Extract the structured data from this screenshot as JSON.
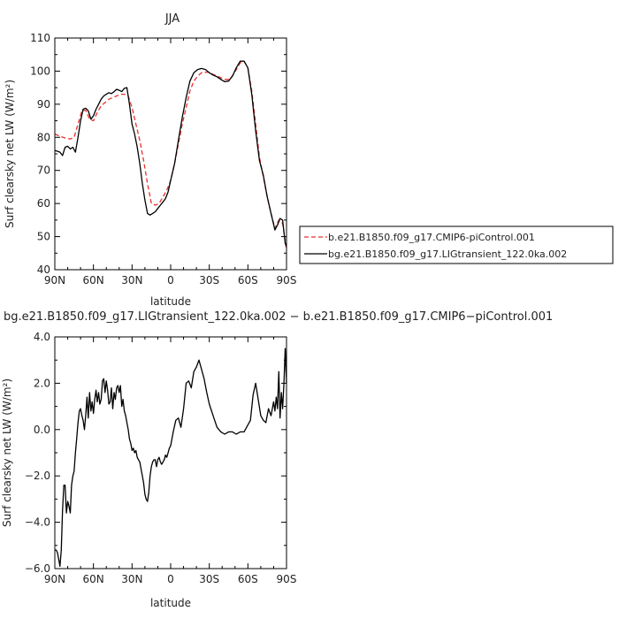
{
  "chart_data": [
    {
      "type": "line",
      "title": "JJA",
      "xlabel": "latitude",
      "ylabel": "Surf clearsky net LW (W/m²)",
      "xlim": [
        90,
        -90
      ],
      "ylim": [
        40,
        110
      ],
      "x_ticks": [
        90,
        60,
        30,
        0,
        -30,
        -60,
        -90
      ],
      "x_tick_labels": [
        "90N",
        "60N",
        "30N",
        "0",
        "30S",
        "60S",
        "90S"
      ],
      "y_ticks": [
        40,
        50,
        60,
        70,
        80,
        90,
        100,
        110
      ],
      "y_tick_labels": [
        "40",
        "50",
        "60",
        "70",
        "80",
        "90",
        "100",
        "110"
      ],
      "legend_position": "right",
      "series": [
        {
          "name": "b.e21.B1850.f09_g17.CMIP6-piControl.001",
          "color": "#e8312f",
          "dash": "dashed",
          "x": [
            90,
            86,
            82,
            78,
            75,
            72,
            69,
            66,
            63,
            60,
            57,
            54,
            51,
            48,
            45,
            42,
            39,
            36,
            33,
            30,
            27,
            24,
            21,
            18,
            15,
            12,
            9,
            6,
            3,
            0,
            -3,
            -6,
            -9,
            -12,
            -15,
            -18,
            -21,
            -24,
            -27,
            -30,
            -33,
            -36,
            -39,
            -42,
            -45,
            -48,
            -51,
            -54,
            -57,
            -60,
            -63,
            -66,
            -69,
            -72,
            -75,
            -78,
            -81,
            -84,
            -87,
            -90
          ],
          "y": [
            81,
            80.3,
            79.8,
            79.5,
            80,
            84,
            88,
            88.2,
            85.5,
            85,
            87.5,
            89.5,
            90.5,
            91.5,
            92,
            92.5,
            93,
            93,
            92.5,
            89,
            84,
            79,
            73,
            66,
            60,
            59.5,
            60,
            62,
            64,
            67,
            72,
            78,
            84,
            89,
            94,
            97,
            98.5,
            99.5,
            99.7,
            99.6,
            99,
            98.5,
            98,
            97.5,
            97.5,
            98.5,
            100.5,
            102.5,
            103,
            101,
            94,
            84,
            74,
            68,
            62,
            57,
            52.5,
            55,
            54,
            46
          ]
        },
        {
          "name": "bg.e21.B1850.f09_g17.LIGtransient_122.0ka.002",
          "color": "#000000",
          "dash": "solid",
          "x": [
            90,
            88,
            86,
            84,
            82,
            80,
            78,
            76,
            74,
            72,
            70,
            68,
            66,
            64,
            62,
            60,
            58,
            56,
            54,
            52,
            50,
            48,
            46,
            44,
            42,
            40,
            38,
            36,
            34,
            32,
            30,
            28,
            26,
            24,
            22,
            20,
            18,
            16,
            14,
            12,
            10,
            8,
            6,
            4,
            2,
            0,
            -3,
            -6,
            -9,
            -12,
            -15,
            -18,
            -21,
            -24,
            -27,
            -30,
            -33,
            -36,
            -39,
            -42,
            -45,
            -48,
            -51,
            -54,
            -57,
            -60,
            -63,
            -66,
            -69,
            -72,
            -75,
            -78,
            -81,
            -83,
            -85,
            -87,
            -89,
            -90
          ],
          "y": [
            76,
            75.8,
            75.5,
            74.5,
            77,
            77.3,
            76.5,
            77,
            75.5,
            80,
            85,
            88.5,
            88.8,
            88,
            85.5,
            86.5,
            88.5,
            90,
            91.5,
            92.5,
            93,
            93.5,
            93.2,
            93.8,
            94.5,
            94.2,
            93.8,
            94.8,
            95,
            90,
            84,
            81,
            77,
            72,
            66,
            61,
            57,
            56.5,
            57,
            57.5,
            58.5,
            59.5,
            60.5,
            61.5,
            63.5,
            67,
            72,
            79,
            86,
            92,
            97,
            99.5,
            100.5,
            100.8,
            100.5,
            99.5,
            98.8,
            98.3,
            97.5,
            96.8,
            97,
            98.5,
            101,
            103,
            103,
            101,
            93,
            82,
            73,
            68.5,
            62,
            57,
            52,
            53.5,
            55.5,
            55,
            48,
            47
          ]
        }
      ]
    },
    {
      "type": "line",
      "title": "bg.e21.B1850.f09_g17.LIGtransient_122.0ka.002 − b.e21.B1850.f09_g17.CMIP6−piControl.001",
      "xlabel": "latitude",
      "ylabel": "Surf clearsky net LW (W/m²)",
      "xlim": [
        90,
        -90
      ],
      "ylim": [
        -6.0,
        4.0
      ],
      "x_ticks": [
        90,
        60,
        30,
        0,
        -30,
        -60,
        -90
      ],
      "x_tick_labels": [
        "90N",
        "60N",
        "30N",
        "0",
        "30S",
        "60S",
        "90S"
      ],
      "y_ticks": [
        -6,
        -4,
        -2,
        0,
        2,
        4
      ],
      "y_tick_labels": [
        "−6.0",
        "−4.0",
        "−2.0",
        "0.0",
        "2.0",
        "4.0"
      ],
      "series": [
        {
          "name": "",
          "color": "#000000",
          "dash": "solid",
          "x": [
            90,
            89,
            88,
            87,
            86,
            85,
            84,
            83,
            82,
            81,
            80,
            79,
            78,
            77,
            76,
            75,
            74,
            73,
            72,
            71,
            70,
            69,
            68,
            67,
            66,
            65,
            64,
            63,
            62,
            61,
            60,
            59,
            58,
            57,
            56,
            55,
            54,
            53,
            52,
            51,
            50,
            49,
            48,
            47,
            46,
            45,
            44,
            43,
            42,
            41,
            40,
            39,
            38,
            37,
            36,
            35,
            34,
            33,
            32,
            31,
            30,
            29,
            28,
            27,
            26,
            25,
            24,
            23,
            22,
            21,
            20,
            19,
            18,
            17,
            16,
            15,
            14,
            13,
            12,
            11,
            10,
            9,
            8,
            7,
            6,
            5,
            4,
            3,
            2,
            1,
            0,
            -2,
            -4,
            -6,
            -8,
            -10,
            -12,
            -14,
            -16,
            -18,
            -20,
            -22,
            -24,
            -26,
            -28,
            -30,
            -33,
            -36,
            -39,
            -42,
            -45,
            -48,
            -51,
            -54,
            -57,
            -60,
            -62,
            -64,
            -66,
            -68,
            -70,
            -72,
            -74,
            -76,
            -78,
            -80,
            -81,
            -82,
            -83,
            -84,
            -85,
            -86,
            -87,
            -88,
            -89,
            -90
          ],
          "y": [
            -5.2,
            -5.2,
            -5.3,
            -5.6,
            -5.9,
            -5.2,
            -3.5,
            -2.4,
            -2.4,
            -3.6,
            -3.1,
            -3.3,
            -3.6,
            -2.4,
            -2.0,
            -1.8,
            -1.0,
            -0.4,
            0.3,
            0.8,
            0.9,
            0.6,
            0.4,
            0.0,
            0.6,
            1.4,
            0.5,
            1.6,
            0.8,
            1.2,
            0.7,
            1.3,
            1.7,
            1.2,
            1.6,
            1.1,
            1.3,
            2.1,
            2.2,
            1.6,
            2.1,
            1.7,
            1.1,
            1.2,
            1.8,
            0.9,
            1.6,
            1.3,
            1.8,
            1.9,
            1.6,
            1.9,
            1.0,
            1.3,
            0.8,
            0.6,
            0.3,
            0.0,
            -0.4,
            -0.6,
            -0.9,
            -0.8,
            -1.0,
            -0.9,
            -1.2,
            -1.3,
            -1.4,
            -1.7,
            -2.0,
            -2.3,
            -2.8,
            -3.0,
            -3.1,
            -2.7,
            -2.0,
            -1.6,
            -1.4,
            -1.3,
            -1.3,
            -1.6,
            -1.3,
            -1.2,
            -1.4,
            -1.5,
            -1.4,
            -1.3,
            -1.1,
            -1.2,
            -1.0,
            -0.8,
            -0.7,
            -0.1,
            0.4,
            0.5,
            0.1,
            0.9,
            2.0,
            2.1,
            1.8,
            2.5,
            2.7,
            3.0,
            2.6,
            2.2,
            1.6,
            1.1,
            0.6,
            0.1,
            -0.1,
            -0.2,
            -0.1,
            -0.1,
            -0.2,
            -0.1,
            -0.1,
            0.2,
            0.4,
            1.5,
            2.0,
            1.3,
            0.6,
            0.4,
            0.3,
            0.9,
            0.6,
            1.2,
            0.8,
            1.4,
            0.9,
            2.5,
            0.5,
            1.6,
            0.9,
            2.0,
            3.5,
            2.0
          ]
        }
      ]
    }
  ]
}
